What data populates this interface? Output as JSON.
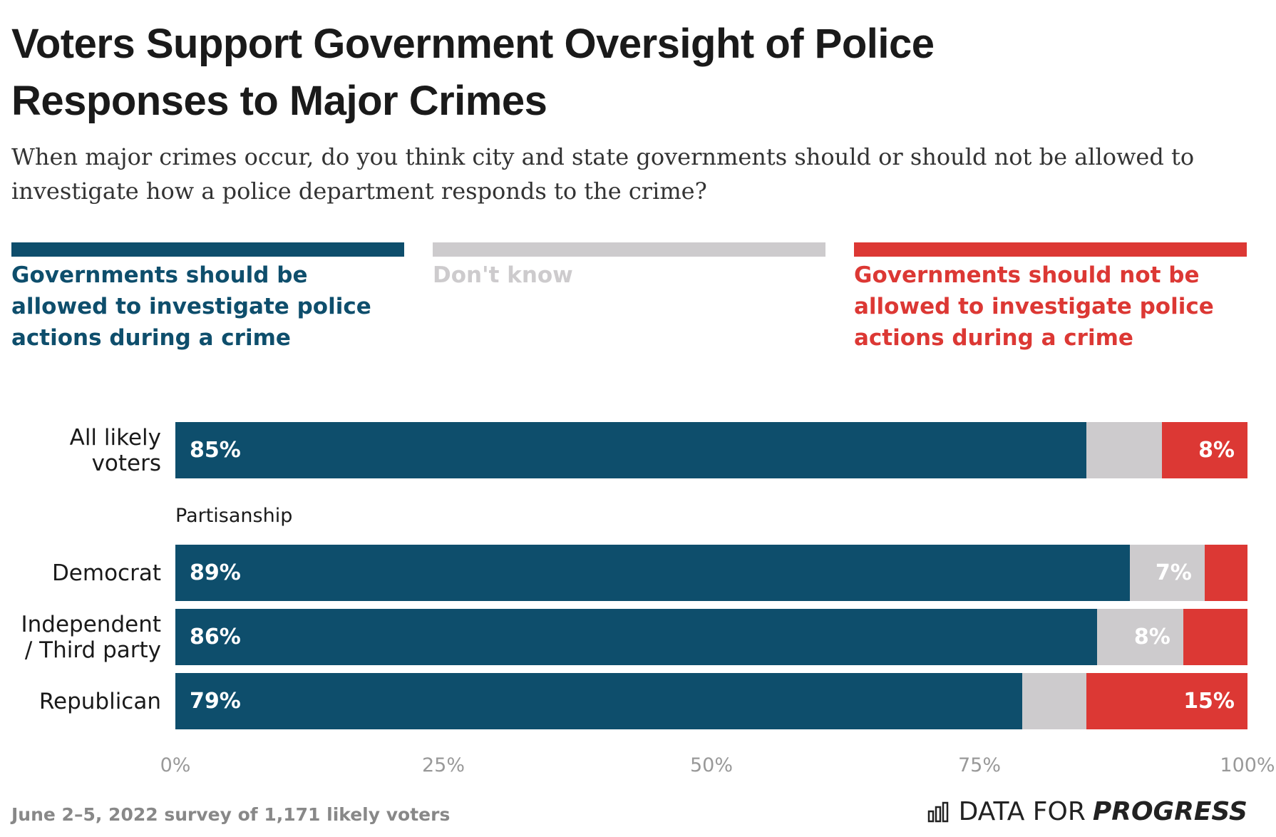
{
  "chart_data": {
    "type": "stacked-bar-horizontal",
    "title": "Voters Support Government Oversight of Police Responses to Major Crimes",
    "subtitle": "When major crimes occur, do you think city and state governments should or should not be allowed to investigate how a police department responds to the crime?",
    "categories": [
      "All likely voters",
      null,
      "Democrat",
      "Independent / Third party",
      "Republican"
    ],
    "group_label": "Partisanship",
    "series": [
      {
        "name": "Governments should be allowed to investigate police actions during a crime",
        "color": "#0e4e6c",
        "values": [
          85,
          null,
          89,
          86,
          79
        ],
        "value_labels": [
          "85%",
          null,
          "89%",
          "86%",
          "79%"
        ]
      },
      {
        "name": "Don't know",
        "color": "#cdcbcd",
        "values": [
          7,
          null,
          7,
          8,
          6
        ],
        "value_labels": [
          null,
          null,
          "7%",
          "8%",
          null
        ]
      },
      {
        "name": "Governments should not be allowed to investigate police actions during a crime",
        "color": "#dc3834",
        "values": [
          8,
          null,
          4,
          6,
          15
        ],
        "value_labels": [
          "8%",
          null,
          null,
          null,
          "15%"
        ]
      }
    ],
    "xlim": [
      0,
      100
    ],
    "xticks": [
      {
        "value": 0,
        "label": "0%"
      },
      {
        "value": 25,
        "label": "25%"
      },
      {
        "value": 50,
        "label": "50%"
      },
      {
        "value": 75,
        "label": "75%"
      },
      {
        "value": 100,
        "label": "100%"
      }
    ],
    "source": "June 2–5, 2022 survey of 1,171 likely voters",
    "brand": [
      "DATA FOR",
      "PROGRESS"
    ]
  }
}
